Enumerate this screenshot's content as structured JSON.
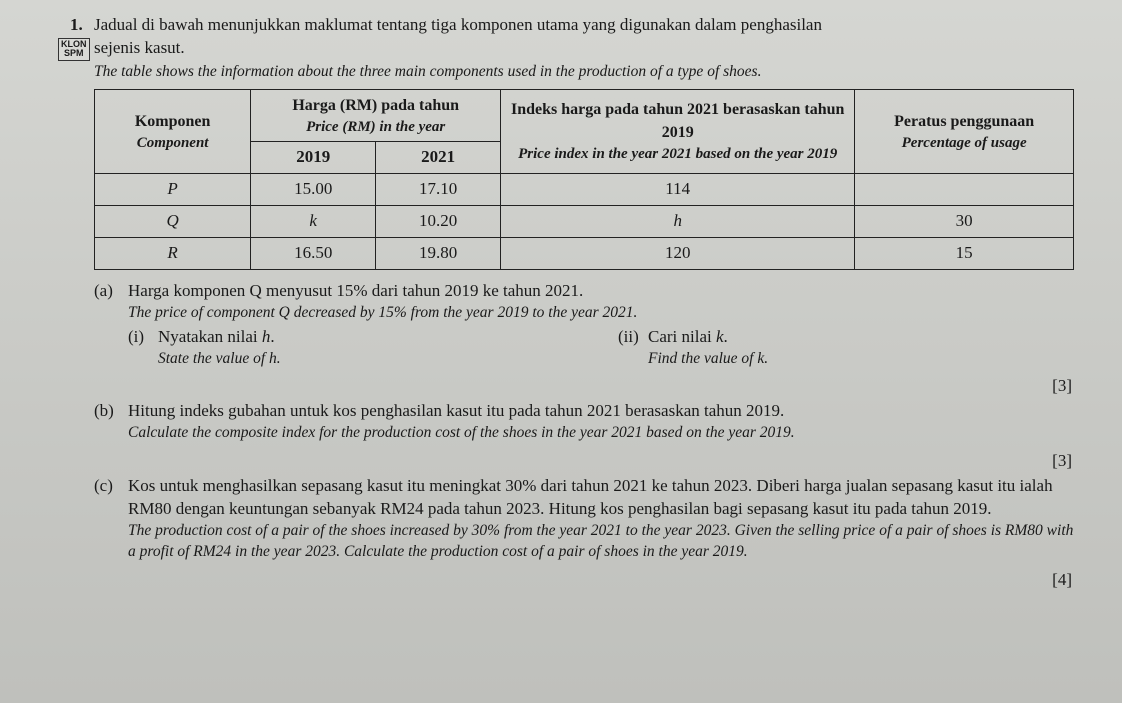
{
  "question_number": "1.",
  "lead_ms": "Jadual di bawah menunjukkan maklumat tentang tiga komponen utama yang digunakan dalam penghasilan",
  "lead_ms2": "sejenis kasut.",
  "lead_en": "The table shows the information about the three main components used in the production of a type of shoes.",
  "badge": {
    "line1": "KLON",
    "line2": "SPM"
  },
  "table": {
    "headers": {
      "component_ms": "Komponen",
      "component_en": "Component",
      "price_ms": "Harga (RM) pada tahun",
      "price_en": "Price (RM) in the year",
      "index_ms": "Indeks harga pada tahun 2021 berasaskan tahun 2019",
      "index_en": "Price index in the year 2021 based on the year 2019",
      "usage_ms": "Peratus penggunaan",
      "usage_en": "Percentage of usage",
      "y2019": "2019",
      "y2021": "2021"
    },
    "rows": [
      {
        "comp": "P",
        "p2019": "15.00",
        "p2021": "17.10",
        "index": "114",
        "usage": ""
      },
      {
        "comp": "Q",
        "p2019": "k",
        "p2021": "10.20",
        "index": "h",
        "usage": "30"
      },
      {
        "comp": "R",
        "p2019": "16.50",
        "p2021": "19.80",
        "index": "120",
        "usage": "15"
      }
    ]
  },
  "part_a": {
    "label": "(a)",
    "ms": "Harga komponen Q menyusut 15% dari tahun 2019 ke tahun 2021.",
    "en": "The price of component Q decreased by 15% from the year 2019 to the year 2021.",
    "sub_i": {
      "label": "(i)",
      "ms": "Nyatakan nilai h.",
      "en": "State the value of h."
    },
    "sub_ii": {
      "label": "(ii)",
      "ms": "Cari nilai k.",
      "en": "Find the value of k."
    },
    "marks": "[3]"
  },
  "part_b": {
    "label": "(b)",
    "ms": "Hitung indeks gubahan untuk kos penghasilan kasut itu pada tahun 2021 berasaskan tahun 2019.",
    "en": "Calculate the composite index for the production cost of the shoes in the year 2021 based on the year 2019.",
    "marks": "[3]"
  },
  "part_c": {
    "label": "(c)",
    "ms": "Kos untuk menghasilkan sepasang kasut itu meningkat 30% dari tahun 2021 ke tahun 2023. Diberi harga jualan sepasang kasut itu ialah RM80 dengan keuntungan sebanyak RM24 pada tahun 2023. Hitung kos penghasilan bagi sepasang kasut itu pada tahun 2019.",
    "en": "The production cost of a pair of the shoes increased by 30% from the year 2021 to the year 2023. Given the selling price of a pair of shoes is RM80 with a profit of RM24 in the year 2023. Calculate the production cost of a pair of shoes in the year 2019.",
    "marks": "[4]"
  }
}
